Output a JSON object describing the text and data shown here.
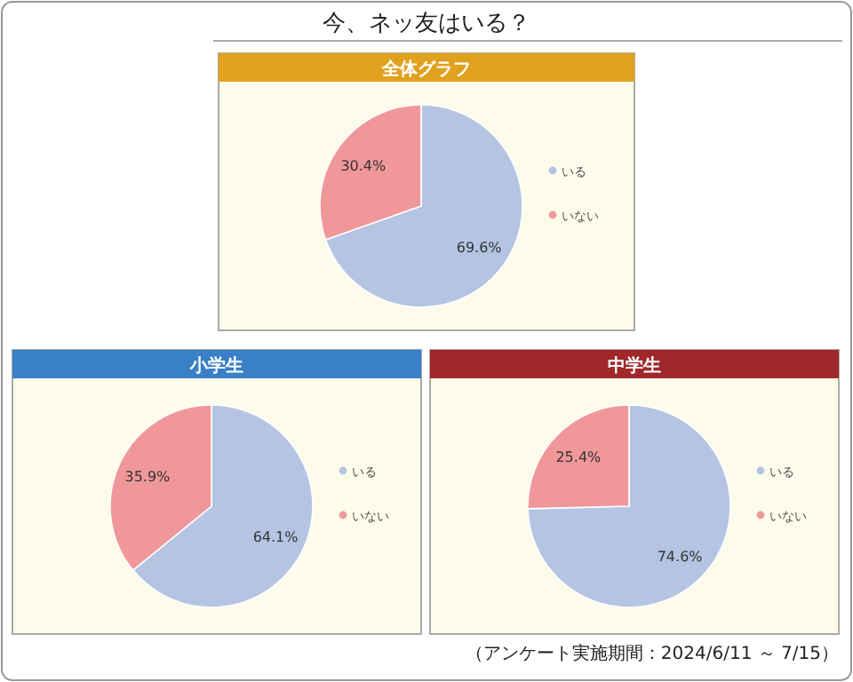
{
  "chart_data": [
    {
      "type": "other",
      "title": "今、ネッ友はいる？",
      "annotations": [
        "（アンケート実施期間：2024/6/11 ～ 7/15）"
      ]
    },
    {
      "type": "pie",
      "title": "全体グラフ",
      "categories": [
        "いる",
        "いない"
      ],
      "values": [
        69.6,
        30.4
      ],
      "value_labels": [
        "69.6%",
        "30.4%"
      ],
      "colors": [
        "#b4c4e2",
        "#f0979a"
      ],
      "legend": "right"
    },
    {
      "type": "pie",
      "title": "小学生",
      "categories": [
        "いる",
        "いない"
      ],
      "values": [
        64.1,
        35.9
      ],
      "value_labels": [
        "64.1%",
        "35.9%"
      ],
      "colors": [
        "#b4c4e2",
        "#f0979a"
      ],
      "legend": "right"
    },
    {
      "type": "pie",
      "title": "中学生",
      "categories": [
        "いる",
        "いない"
      ],
      "values": [
        74.6,
        25.4
      ],
      "value_labels": [
        "74.6%",
        "25.4%"
      ],
      "colors": [
        "#b4c4e2",
        "#f0979a"
      ],
      "legend": "right"
    }
  ]
}
